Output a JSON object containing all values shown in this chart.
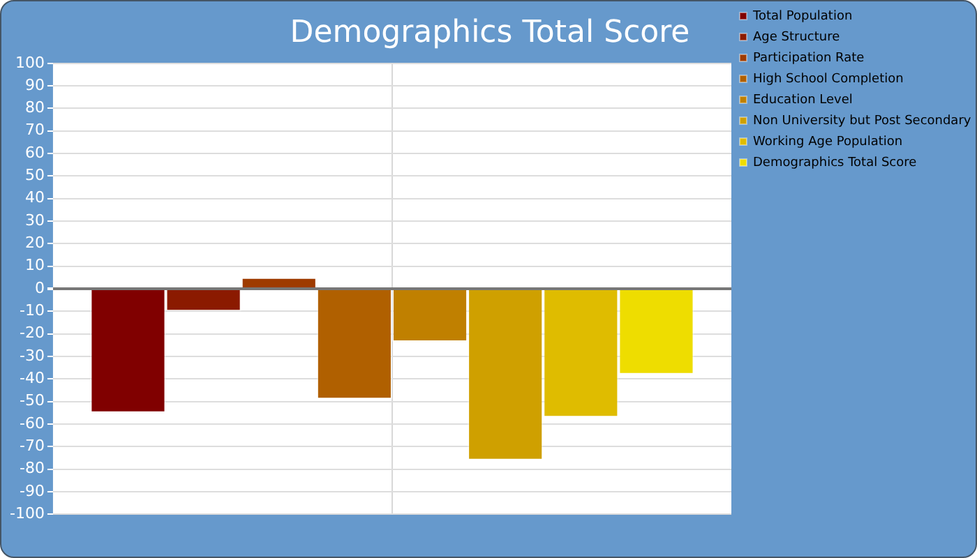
{
  "chart_data": {
    "type": "bar",
    "title": "Demographics Total Score",
    "categories": [
      null
    ],
    "series": [
      {
        "name": "Total Population",
        "color": "#800000",
        "values": [
          -55
        ]
      },
      {
        "name": "Age Structure",
        "color": "#8b1a00",
        "values": [
          -10
        ]
      },
      {
        "name": "Participation Rate",
        "color": "#9e3b00",
        "values": [
          5
        ]
      },
      {
        "name": "High School Completion",
        "color": "#b06000",
        "values": [
          -49
        ]
      },
      {
        "name": "Education Level",
        "color": "#c08000",
        "values": [
          -23.5
        ]
      },
      {
        "name": "Non University but Post Secondary",
        "color": "#cfa000",
        "values": [
          -76
        ]
      },
      {
        "name": "Working Age Population",
        "color": "#dfbc00",
        "values": [
          -57
        ]
      },
      {
        "name": "Demographics Total Score",
        "color": "#eedd00",
        "values": [
          -38
        ]
      }
    ],
    "ylim": [
      -100,
      100
    ],
    "yticks": [
      -100,
      -90,
      -80,
      -70,
      -60,
      -50,
      -40,
      -30,
      -20,
      -10,
      0,
      10,
      20,
      30,
      40,
      50,
      60,
      70,
      80,
      90,
      100
    ],
    "grid": true,
    "legend": "right"
  }
}
